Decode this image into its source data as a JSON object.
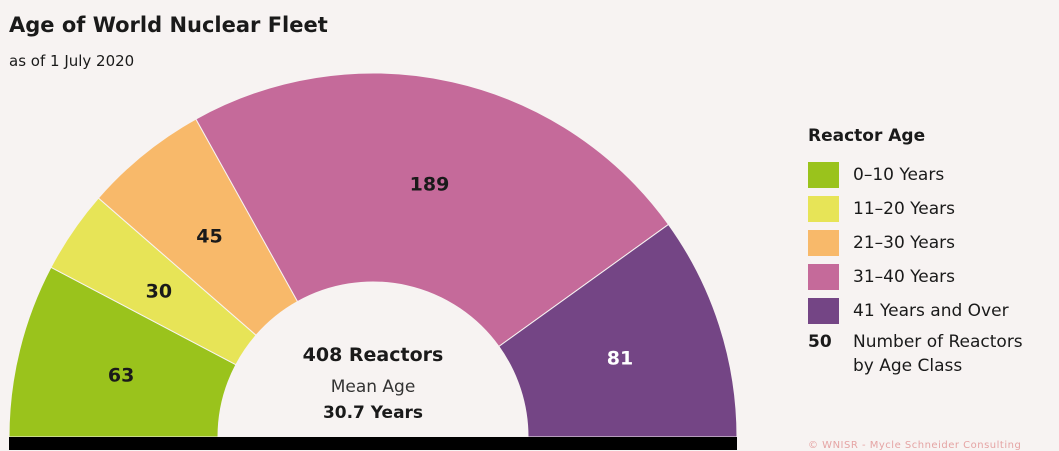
{
  "title": "Age of World Nuclear Fleet",
  "subtitle": "as of 1 July 2020",
  "chart_data": {
    "type": "pie",
    "variant": "half-donut",
    "categories": [
      "0–10 Years",
      "11–20 Years",
      "21–30 Years",
      "31–40 Years",
      "41 Years and Over"
    ],
    "values": [
      63,
      30,
      45,
      189,
      81
    ],
    "colors": [
      "#9ac31c",
      "#e7e457",
      "#f8b96a",
      "#c56a9a",
      "#744585"
    ],
    "total": 408,
    "center_line1": "408 Reactors",
    "center_line2": "Mean Age",
    "center_line3": "30.7 Years"
  },
  "legend": {
    "title": "Reactor Age",
    "items": [
      {
        "label": "0–10 Years",
        "color": "#9ac31c"
      },
      {
        "label": "11–20 Years",
        "color": "#e7e457"
      },
      {
        "label": "21–30 Years",
        "color": "#f8b96a"
      },
      {
        "label": "31–40 Years",
        "color": "#c56a9a"
      },
      {
        "label": "41 Years and Over",
        "color": "#744585"
      }
    ],
    "key_number": "50",
    "key_text": "Number of Reactors\nby Age Class"
  },
  "credit": "© WNISR - Mycle Schneider Consulting"
}
